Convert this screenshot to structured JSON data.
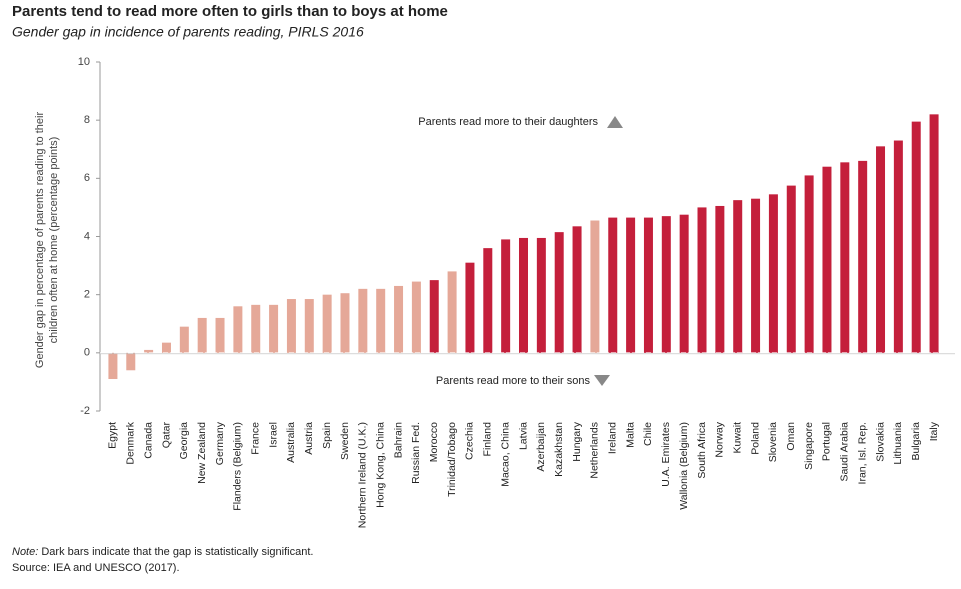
{
  "chart_data": {
    "type": "bar",
    "title": "Parents tend to read more often to girls than to boys at home",
    "subtitle": "Gender gap in incidence of parents reading, PIRLS 2016",
    "y_label": [
      "Gender gap in percentage of parents reading to their",
      "children often at home (percentage points)"
    ],
    "categories": [
      "Egypt",
      "Denmark",
      "Canada",
      "Qatar",
      "Georgia",
      "New Zealand",
      "Germany",
      "Flanders (Belgium)",
      "France",
      "Israel",
      "Australia",
      "Austria",
      "Spain",
      "Sweden",
      "Northern Ireland (U.K.)",
      "Hong Kong, China",
      "Bahrain",
      "Russian Fed.",
      "Morocco",
      "Trinidad/Tobago",
      "Czechia",
      "Finland",
      "Macao, China",
      "Latvia",
      "Azerbaijan",
      "Kazakhstan",
      "Hungary",
      "Netherlands",
      "Ireland",
      "Malta",
      "Chile",
      "U.A. Emirates",
      "Wallonia (Belgium)",
      "South Africa",
      "Norway",
      "Kuwait",
      "Poland",
      "Slovenia",
      "Oman",
      "Singapore",
      "Portugal",
      "Saudi Arabia",
      "Iran, Isl. Rep.",
      "Slovakia",
      "Lithuania",
      "Bulgaria",
      "Italy"
    ],
    "values": [
      -0.9,
      -0.6,
      0.1,
      0.35,
      0.9,
      1.2,
      1.2,
      1.6,
      1.65,
      1.65,
      1.85,
      1.85,
      2.0,
      2.05,
      2.2,
      2.2,
      2.3,
      2.45,
      2.5,
      2.8,
      3.1,
      3.6,
      3.9,
      3.95,
      3.95,
      4.15,
      4.35,
      4.55,
      4.65,
      4.65,
      4.65,
      4.7,
      4.75,
      5.0,
      5.05,
      5.25,
      5.3,
      5.45,
      5.75,
      6.1,
      6.4,
      6.55,
      6.6,
      7.1,
      7.3,
      7.95,
      8.2
    ],
    "colors": [
      "#e5a898",
      "#e5a898",
      "#e5a898",
      "#e5a898",
      "#e5a898",
      "#e5a898",
      "#e5a898",
      "#e5a898",
      "#e5a898",
      "#e5a898",
      "#e5a898",
      "#e5a898",
      "#e5a898",
      "#e5a898",
      "#e5a898",
      "#e5a898",
      "#e5a898",
      "#e5a898",
      "#c41f3b",
      "#e5a898",
      "#c41f3b",
      "#c41f3b",
      "#c41f3b",
      "#c41f3b",
      "#c41f3b",
      "#c41f3b",
      "#c41f3b",
      "#e5a898",
      "#c41f3b",
      "#c41f3b",
      "#c41f3b",
      "#c41f3b",
      "#c41f3b",
      "#c41f3b",
      "#c41f3b",
      "#c41f3b",
      "#c41f3b",
      "#c41f3b",
      "#c41f3b",
      "#c41f3b",
      "#c41f3b",
      "#c41f3b",
      "#c41f3b",
      "#c41f3b",
      "#c41f3b",
      "#c41f3b",
      "#c41f3b"
    ],
    "ylim": [
      -2,
      10
    ],
    "yticks": [
      -2,
      0,
      2,
      4,
      6,
      8,
      10
    ],
    "annotations": [
      "Parents read more to their daughters",
      "Parents read more to their sons"
    ],
    "note_label": "Note:",
    "note": "Dark bars indicate that the gap is statistically significant.",
    "source": "Source: IEA and UNESCO (2017)."
  }
}
